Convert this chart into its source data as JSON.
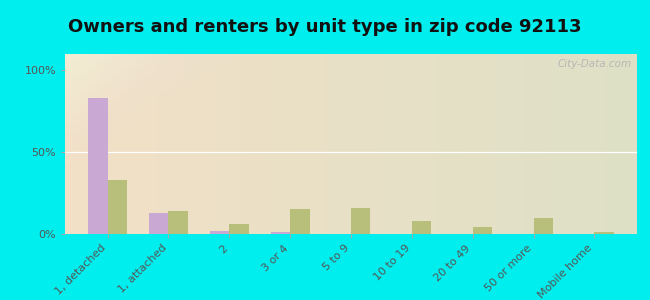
{
  "title": "Owners and renters by unit type in zip code 92113",
  "categories": [
    "1, detached",
    "1, attached",
    "2",
    "3 or 4",
    "5 to 9",
    "10 to 19",
    "20 to 49",
    "50 or more",
    "Mobile home"
  ],
  "owner_values": [
    83,
    13,
    2,
    1,
    0,
    0,
    0,
    0,
    0
  ],
  "renter_values": [
    33,
    14,
    6,
    15,
    16,
    8,
    4,
    10,
    1
  ],
  "owner_color": "#c9a8d4",
  "renter_color": "#b8bf7a",
  "outer_bg": "#00eeee",
  "yticks": [
    0,
    50,
    100
  ],
  "ylabels": [
    "0%",
    "50%",
    "100%"
  ],
  "ylim": [
    0,
    110
  ],
  "watermark": "City-Data.com",
  "title_fontsize": 13,
  "tick_fontsize": 8,
  "legend_fontsize": 9
}
